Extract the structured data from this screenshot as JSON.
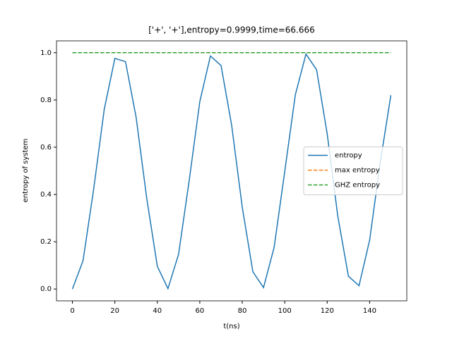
{
  "chart_data": {
    "type": "line",
    "title": "['+', '+'],entropy=0.9999,time=66.666",
    "xlabel": "t(ns)",
    "ylabel": "entropy of system",
    "xlim": [
      -7.5,
      157.5
    ],
    "xticks": [
      0,
      20,
      40,
      60,
      80,
      100,
      120,
      140
    ],
    "ylim": [
      -0.05,
      1.05
    ],
    "yticks": [
      {
        "value": 0,
        "label": "0.0"
      },
      0.2,
      0.4,
      0.6,
      0.8,
      {
        "value": 1,
        "label": "1.0"
      }
    ],
    "legend": "center right",
    "series": [
      {
        "name": "entropy",
        "color": "#1f77b4",
        "style": "solid",
        "x": [
          0,
          5,
          10,
          15,
          20,
          25,
          30,
          35,
          40,
          45,
          50,
          55,
          60,
          65,
          70,
          75,
          80,
          85,
          90,
          95,
          100,
          105,
          110,
          115,
          120,
          125,
          130,
          135,
          140,
          145,
          150
        ],
        "values": [
          0,
          0.12,
          0.422,
          0.761,
          0.976,
          0.962,
          0.727,
          0.384,
          0.096,
          0.002,
          0.147,
          0.459,
          0.793,
          0.986,
          0.946,
          0.693,
          0.346,
          0.073,
          0.006,
          0.176,
          0.497,
          0.822,
          0.994,
          0.928,
          0.657,
          0.308,
          0.054,
          0.014,
          0.207,
          0.536,
          0.82
        ]
      },
      {
        "name": "max entropy",
        "color": "#ff7f0e",
        "style": "dashed",
        "x": [
          0,
          150
        ],
        "values": [
          1,
          1
        ]
      },
      {
        "name": "GHZ entropy",
        "color": "#2ca02c",
        "style": "dashed",
        "x": [
          0,
          150
        ],
        "values": [
          1,
          1
        ]
      }
    ]
  }
}
